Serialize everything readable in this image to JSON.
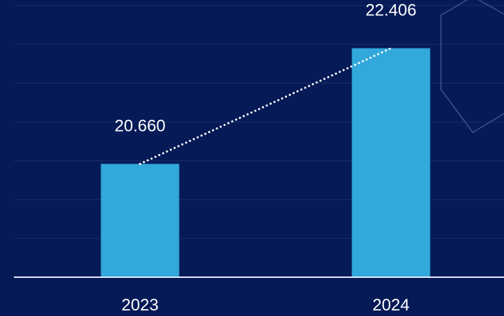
{
  "chart_data": {
    "type": "bar",
    "categories": [
      "2023",
      "2024"
    ],
    "values": [
      20.66,
      22.406
    ],
    "value_labels": [
      "20.660",
      "22.406"
    ],
    "title": "",
    "xlabel": "",
    "ylabel": "",
    "ylim": [
      18.95,
      23.05
    ],
    "grid": true,
    "legend": "none",
    "trend_line": {
      "style": "dotted",
      "color": "#ffffff"
    }
  },
  "colors": {
    "background": "#061a57",
    "bar": "#32a8db",
    "gridline": "#1a2f6e",
    "axis": "#e9eef8",
    "text": "#ffffff",
    "decoration": "#4a5f8f"
  },
  "decoration_icon": "hexagon-outline"
}
